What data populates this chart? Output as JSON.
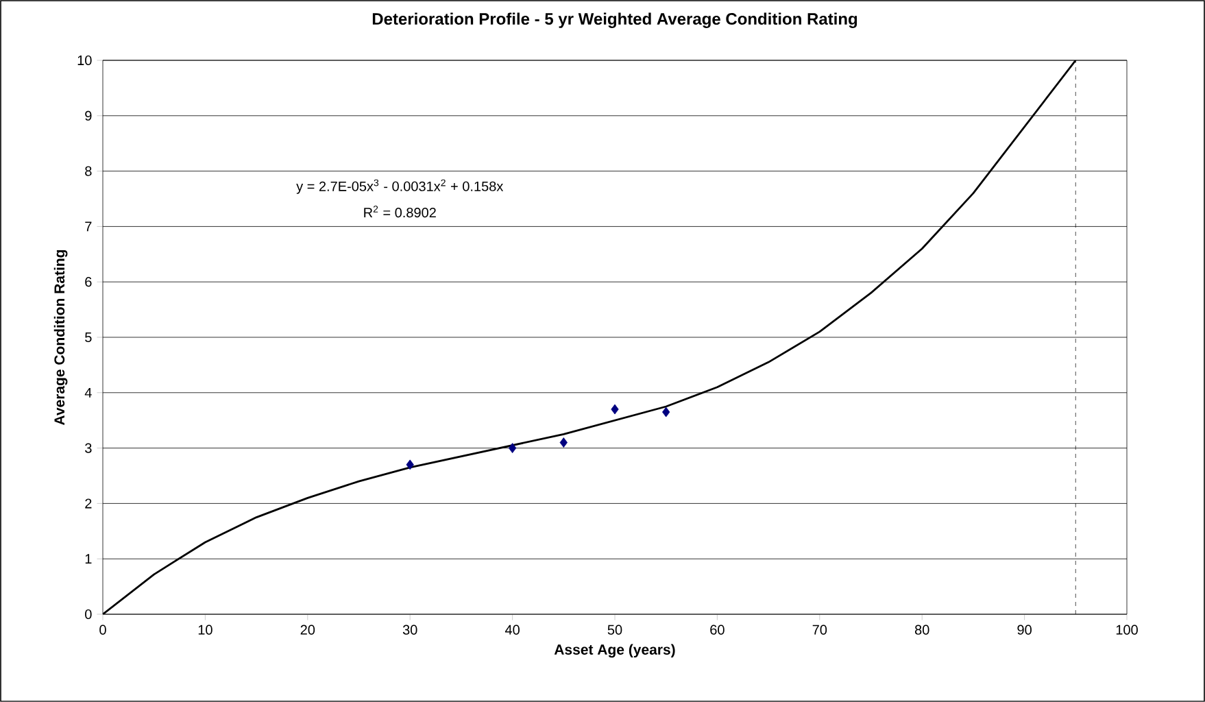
{
  "chart_data": {
    "type": "scatter",
    "title": "Deterioration Profile - 5 yr Weighted Average Condition Rating",
    "xlabel": "Asset Age (years)",
    "ylabel": "Average Condition Rating",
    "annotations": [
      "y = 2.7E-05x$^{3}$ - 0.0031x$^{2}$ + 0.158x",
      "R$^{2}$ = 0.8902"
    ],
    "series": [
      {
        "color": "#000080",
        "marker": "diamond",
        "x": [
          30,
          40,
          45,
          50,
          55
        ],
        "values": [
          2.7,
          3.0,
          3.1,
          3.7,
          3.65
        ]
      },
      {
        "type": "line",
        "color": "#000000",
        "marker": "none",
        "line_style": "solid",
        "x": [
          0,
          5,
          10,
          15,
          20,
          25,
          30,
          35,
          40,
          45,
          50,
          55,
          60,
          65,
          70,
          75,
          80,
          85,
          90,
          95
        ],
        "values": [
          0,
          0.72,
          1.3,
          1.75,
          2.1,
          2.4,
          2.65,
          2.85,
          3.05,
          3.25,
          3.5,
          3.75,
          4.1,
          4.55,
          5.1,
          5.8,
          6.6,
          7.6,
          8.8,
          10
        ]
      }
    ],
    "ref_lines": [
      {
        "axis": "x",
        "value": 95,
        "color": "#000000",
        "line_style": "dashed"
      }
    ],
    "xlim": [
      0,
      100
    ],
    "xticks": [
      0,
      10,
      20,
      30,
      40,
      50,
      60,
      70,
      80,
      90,
      100
    ],
    "ylim": [
      0,
      10
    ],
    "yticks": [
      0,
      1,
      2,
      3,
      4,
      5,
      6,
      7,
      8,
      9,
      10
    ],
    "grid": "y"
  }
}
